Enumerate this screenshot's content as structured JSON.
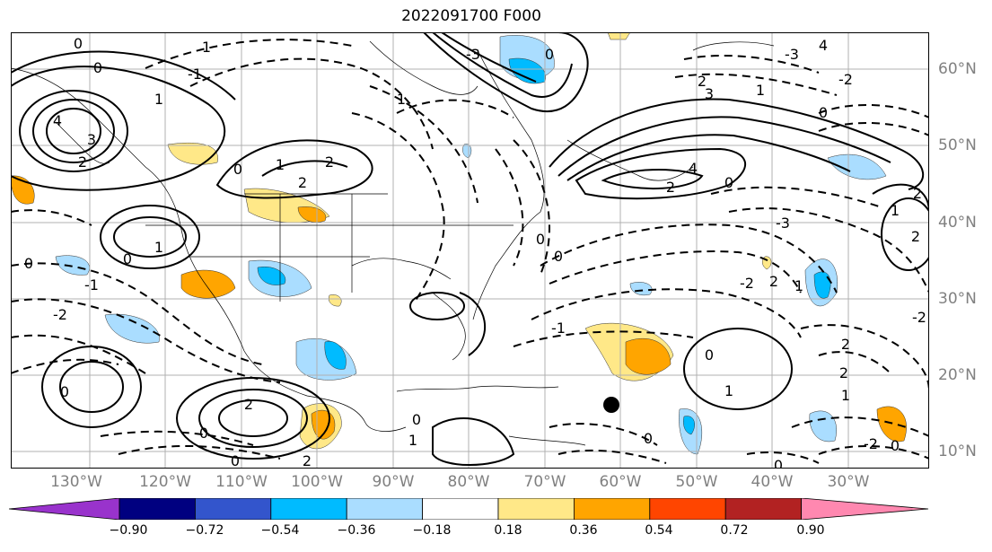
{
  "title": "2022091700 F000",
  "longitude_labels": [
    "130°W",
    "120°W",
    "110°W",
    "100°W",
    "90°W",
    "80°W",
    "70°W",
    "60°W",
    "50°W",
    "40°W",
    "30°W"
  ],
  "latitude_labels": [
    "60°N",
    "50°N",
    "40°N",
    "30°N",
    "20°N",
    "10°N"
  ],
  "colorbar": {
    "ticks": [
      "−0.90",
      "−0.72",
      "−0.54",
      "−0.36",
      "−0.18",
      "0.18",
      "0.36",
      "0.54",
      "0.72",
      "0.90"
    ],
    "colors": [
      "#9933cc",
      "#000080",
      "#3355cc",
      "#00bbff",
      "#aaddff",
      "#ffffff",
      "#ffe888",
      "#ffa500",
      "#ff4500",
      "#b22222",
      "#ff88b0"
    ]
  },
  "contour_labels": [
    "0",
    "1",
    "2",
    "3",
    "4",
    "5",
    "-1",
    "-2",
    "-3"
  ],
  "storm_marker": "black dot"
}
